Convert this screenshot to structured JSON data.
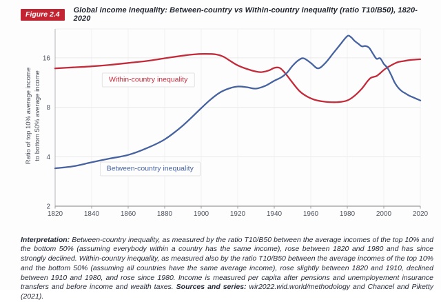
{
  "figure": {
    "badge": "Figure 2.4",
    "title": "Global income inequality: Between-country vs Within-country inequality (ratio T10/B50), 1820-2020"
  },
  "chart_data": {
    "type": "line",
    "title": "Global income inequality: Between-country vs Within-country inequality (ratio T10/B50), 1820-2020",
    "xlabel": "",
    "ylabel_line1": "Ratio of top 10% average income",
    "ylabel_line2": "to bottom 50% average income",
    "x_ticks": [
      1820,
      1840,
      1860,
      1880,
      1900,
      1920,
      1940,
      1960,
      1980,
      2000,
      2020
    ],
    "y_ticks": [
      2,
      4,
      8,
      16
    ],
    "y_scale": "log2",
    "xlim": [
      1820,
      2020
    ],
    "ylim": [
      2,
      24.6
    ],
    "grid": true,
    "series": [
      {
        "name": "Within-country inequality",
        "color": "#c22b3a",
        "points": [
          [
            1820,
            13.8
          ],
          [
            1830,
            14.0
          ],
          [
            1840,
            14.2
          ],
          [
            1850,
            14.5
          ],
          [
            1860,
            14.9
          ],
          [
            1870,
            15.3
          ],
          [
            1880,
            15.9
          ],
          [
            1890,
            16.5
          ],
          [
            1896,
            16.8
          ],
          [
            1902,
            16.9
          ],
          [
            1908,
            16.8
          ],
          [
            1912,
            16.3
          ],
          [
            1916,
            15.3
          ],
          [
            1920,
            14.4
          ],
          [
            1925,
            13.7
          ],
          [
            1930,
            13.2
          ],
          [
            1933,
            13.1
          ],
          [
            1937,
            13.4
          ],
          [
            1940,
            13.9
          ],
          [
            1943,
            13.9
          ],
          [
            1946,
            12.9
          ],
          [
            1950,
            11.3
          ],
          [
            1954,
            10.0
          ],
          [
            1958,
            9.3
          ],
          [
            1962,
            8.9
          ],
          [
            1966,
            8.7
          ],
          [
            1970,
            8.6
          ],
          [
            1975,
            8.6
          ],
          [
            1980,
            8.8
          ],
          [
            1984,
            9.4
          ],
          [
            1988,
            10.4
          ],
          [
            1991,
            11.5
          ],
          [
            1993,
            12.1
          ],
          [
            1996,
            12.4
          ],
          [
            1998,
            12.9
          ],
          [
            2000,
            13.5
          ],
          [
            2002,
            14.0
          ],
          [
            2004,
            14.4
          ],
          [
            2006,
            14.8
          ],
          [
            2008,
            15.1
          ],
          [
            2011,
            15.3
          ],
          [
            2014,
            15.5
          ],
          [
            2017,
            15.6
          ],
          [
            2020,
            15.7
          ]
        ]
      },
      {
        "name": "Between-country inequality",
        "color": "#46629f",
        "points": [
          [
            1820,
            3.4
          ],
          [
            1830,
            3.5
          ],
          [
            1840,
            3.7
          ],
          [
            1850,
            3.9
          ],
          [
            1860,
            4.1
          ],
          [
            1870,
            4.5
          ],
          [
            1880,
            5.1
          ],
          [
            1890,
            6.2
          ],
          [
            1900,
            7.9
          ],
          [
            1905,
            8.9
          ],
          [
            1910,
            9.8
          ],
          [
            1915,
            10.4
          ],
          [
            1920,
            10.7
          ],
          [
            1925,
            10.6
          ],
          [
            1930,
            10.4
          ],
          [
            1935,
            10.8
          ],
          [
            1940,
            11.6
          ],
          [
            1944,
            12.2
          ],
          [
            1947,
            13.0
          ],
          [
            1950,
            14.3
          ],
          [
            1953,
            15.4
          ],
          [
            1956,
            15.9
          ],
          [
            1960,
            14.9
          ],
          [
            1964,
            13.8
          ],
          [
            1968,
            14.9
          ],
          [
            1972,
            16.9
          ],
          [
            1976,
            19.2
          ],
          [
            1980,
            21.7
          ],
          [
            1982,
            21.4
          ],
          [
            1984,
            20.3
          ],
          [
            1986,
            19.5
          ],
          [
            1988,
            18.8
          ],
          [
            1990,
            18.9
          ],
          [
            1992,
            18.4
          ],
          [
            1994,
            17.0
          ],
          [
            1996,
            15.8
          ],
          [
            1998,
            15.9
          ],
          [
            2000,
            14.7
          ],
          [
            2002,
            13.9
          ],
          [
            2004,
            12.6
          ],
          [
            2006,
            11.3
          ],
          [
            2008,
            10.5
          ],
          [
            2010,
            10.0
          ],
          [
            2012,
            9.7
          ],
          [
            2014,
            9.4
          ],
          [
            2016,
            9.2
          ],
          [
            2018,
            9.0
          ],
          [
            2020,
            8.8
          ]
        ]
      }
    ],
    "annotations": [
      {
        "text": "Within-country inequality",
        "color": "#c22b3a",
        "year": 1871,
        "value": 11.7
      },
      {
        "text": "Between-country inequality",
        "color": "#46629f",
        "year": 1872,
        "value": 3.37
      }
    ]
  },
  "caption": {
    "interpretation_label": "Interpretation: ",
    "interpretation_text": "Between-country inequality, as measured by the ratio T10/B50 between the average incomes of the top 10% and the bottom 50% (assuming everybody within a country has the same income), rose between 1820 and 1980 and has since strongly declined. Within-country inequality, as measured also by the ratio T10/B50 between the average incomes of the top 10% and the bottom 50% (assuming all countries have the same average income), rose slightly between 1820 and 1910, declined between 1910 and 1980, and rose since 1980. Income is measured per capita after pensions and unemployement insurance transfers and before income and wealth taxes. ",
    "sources_label": "Sources and series: ",
    "sources_text": "wir2022.wid.world/methodology and Chancel and Piketty (2021)."
  }
}
